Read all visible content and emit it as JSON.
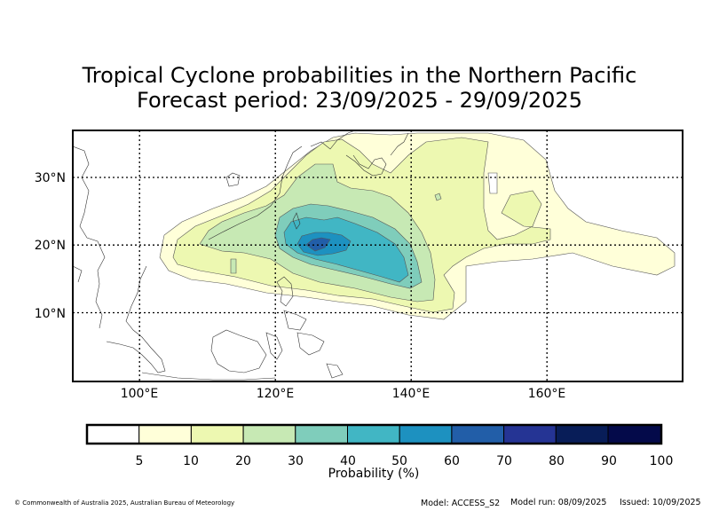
{
  "title_line1": "Tropical Cyclone probabilities in the Northern Pacific",
  "title_line2": "Forecast period: 23/09/2025 - 29/09/2025",
  "map": {
    "lon_ticks": [
      {
        "value": 100,
        "label": "100°E"
      },
      {
        "value": 120,
        "label": "120°E"
      },
      {
        "value": 140,
        "label": "140°E"
      },
      {
        "value": 160,
        "label": "160°E"
      }
    ],
    "lat_ticks": [
      {
        "value": 30,
        "label": "30°N"
      },
      {
        "value": 20,
        "label": "20°N"
      },
      {
        "value": 10,
        "label": "10°N"
      }
    ],
    "lon_range": [
      90,
      180
    ],
    "lat_range": [
      0,
      37
    ],
    "gridlines": "dotted"
  },
  "colorbar": {
    "label": "Probability (%)",
    "bins": [
      {
        "from": 0,
        "to": 5,
        "color": "#ffffff"
      },
      {
        "from": 5,
        "to": 10,
        "color": "#ffffd9"
      },
      {
        "from": 10,
        "to": 20,
        "color": "#edf8b1"
      },
      {
        "from": 20,
        "to": 30,
        "color": "#c7e9b4"
      },
      {
        "from": 30,
        "to": 40,
        "color": "#7fcdbb"
      },
      {
        "from": 40,
        "to": 50,
        "color": "#41b6c4"
      },
      {
        "from": 50,
        "to": 60,
        "color": "#1d91c0"
      },
      {
        "from": 60,
        "to": 70,
        "color": "#225ea8"
      },
      {
        "from": 70,
        "to": 80,
        "color": "#253494"
      },
      {
        "from": 80,
        "to": 90,
        "color": "#081d58"
      },
      {
        "from": 90,
        "to": 100,
        "color": "#040a4a"
      }
    ],
    "tick_labels": [
      "5",
      "10",
      "20",
      "30",
      "40",
      "50",
      "60",
      "70",
      "80",
      "90",
      "100"
    ]
  },
  "footer": {
    "copyright": "© Commonwealth of Australia 2025, Australian Bureau of Meteorology",
    "model": "Model: ACCESS_S2",
    "model_run": "Model run: 08/09/2025",
    "issued": "Issued: 10/09/2025"
  }
}
